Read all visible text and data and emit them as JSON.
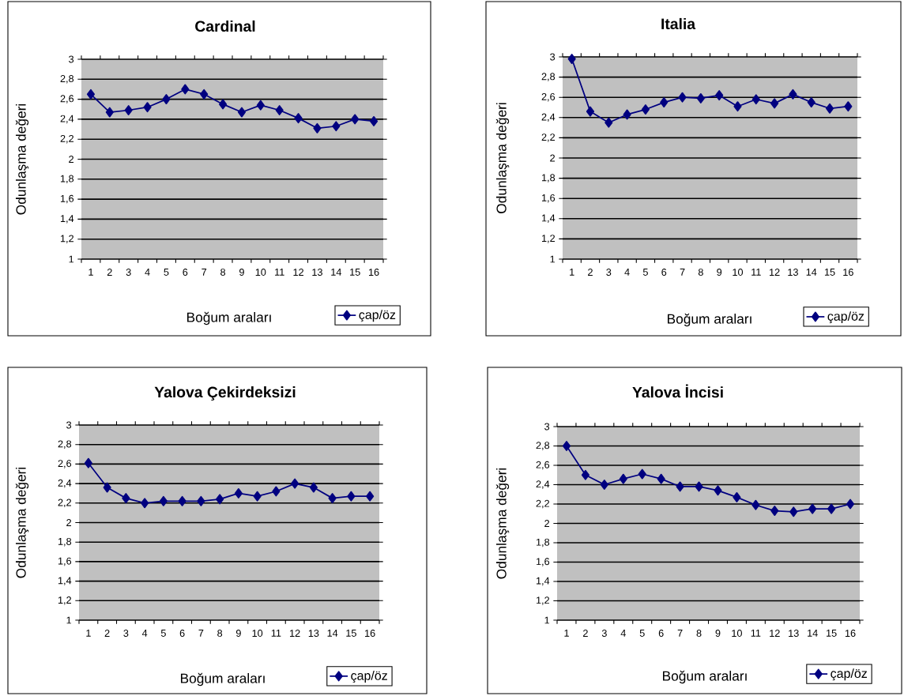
{
  "chart_data": [
    {
      "type": "line",
      "title": "Cardinal",
      "xlabel": "Boğum araları",
      "ylabel": "Odunlaşma değeri",
      "categories": [
        "1",
        "2",
        "3",
        "4",
        "5",
        "6",
        "7",
        "8",
        "9",
        "10",
        "11",
        "12",
        "13",
        "14",
        "15",
        "16"
      ],
      "series": [
        {
          "name": "çap/öz",
          "color": "#000080",
          "values": [
            2.65,
            2.47,
            2.49,
            2.52,
            2.6,
            2.7,
            2.65,
            2.55,
            2.47,
            2.54,
            2.49,
            2.41,
            2.31,
            2.33,
            2.4,
            2.38
          ]
        }
      ],
      "ylim": [
        1,
        3
      ],
      "yticks": [
        1,
        {
          "value": 1.2,
          "label": "1,2"
        },
        {
          "value": 1.4,
          "label": "1,4"
        },
        {
          "value": 1.6,
          "label": "1,6"
        },
        {
          "value": 1.8,
          "label": "1,8"
        },
        2,
        {
          "value": 2.2,
          "label": "2,2"
        },
        {
          "value": 2.4,
          "label": "2,4"
        },
        {
          "value": 2.6,
          "label": "2,6"
        },
        {
          "value": 2.8,
          "label": "2,8"
        },
        3
      ],
      "grid": "y",
      "legend": "bottom right",
      "marker": "diamond",
      "line_style": "solid"
    },
    {
      "type": "line",
      "title": "Italia",
      "xlabel": "Boğum araları",
      "ylabel": "Odunlaşma değeri",
      "categories": [
        "1",
        "2",
        "3",
        "4",
        "5",
        "6",
        "7",
        "8",
        "9",
        "10",
        "11",
        "12",
        "13",
        "14",
        "15",
        "16"
      ],
      "series": [
        {
          "name": "çap/öz",
          "color": "#000080",
          "values": [
            2.98,
            2.46,
            2.35,
            2.43,
            2.48,
            2.55,
            2.6,
            2.59,
            2.62,
            2.51,
            2.58,
            2.54,
            2.63,
            2.55,
            2.49,
            2.51
          ]
        }
      ],
      "ylim": [
        1,
        3
      ],
      "yticks": [
        1,
        {
          "value": 1.2,
          "label": "1,2"
        },
        {
          "value": 1.4,
          "label": "1,4"
        },
        {
          "value": 1.6,
          "label": "1,6"
        },
        {
          "value": 1.8,
          "label": "1,8"
        },
        2,
        {
          "value": 2.2,
          "label": "2,2"
        },
        {
          "value": 2.4,
          "label": "2,4"
        },
        {
          "value": 2.6,
          "label": "2,6"
        },
        {
          "value": 2.8,
          "label": "2,8"
        },
        3
      ],
      "grid": "y",
      "legend": "bottom right",
      "marker": "diamond",
      "line_style": "solid"
    },
    {
      "type": "line",
      "title": "Yalova Çekirdeksizi",
      "xlabel": "Boğum araları",
      "ylabel": "Odunlaşma değeri",
      "categories": [
        "1",
        "2",
        "3",
        "4",
        "5",
        "6",
        "7",
        "8",
        "9",
        "10",
        "11",
        "12",
        "13",
        "14",
        "15",
        "16"
      ],
      "series": [
        {
          "name": "çap/öz",
          "color": "#000080",
          "values": [
            2.61,
            2.36,
            2.25,
            2.2,
            2.22,
            2.22,
            2.22,
            2.24,
            2.3,
            2.27,
            2.32,
            2.4,
            2.36,
            2.25,
            2.27,
            2.27
          ]
        }
      ],
      "ylim": [
        1,
        3
      ],
      "yticks": [
        1,
        {
          "value": 1.2,
          "label": "1,2"
        },
        {
          "value": 1.4,
          "label": "1,4"
        },
        {
          "value": 1.6,
          "label": "1,6"
        },
        {
          "value": 1.8,
          "label": "1,8"
        },
        2,
        {
          "value": 2.2,
          "label": "2,2"
        },
        {
          "value": 2.4,
          "label": "2,4"
        },
        {
          "value": 2.6,
          "label": "2,6"
        },
        {
          "value": 2.8,
          "label": "2,8"
        },
        3
      ],
      "grid": "y",
      "legend": "bottom right",
      "marker": "diamond",
      "line_style": "solid"
    },
    {
      "type": "line",
      "title": "Yalova İncisi",
      "xlabel": "Boğum araları",
      "ylabel": "Odunlaşma değeri",
      "categories": [
        "1",
        "2",
        "3",
        "4",
        "5",
        "6",
        "7",
        "8",
        "9",
        "10",
        "11",
        "12",
        "13",
        "14",
        "15",
        "16"
      ],
      "series": [
        {
          "name": "çap/öz",
          "color": "#000080",
          "values": [
            2.8,
            2.5,
            2.4,
            2.46,
            2.51,
            2.46,
            2.38,
            2.38,
            2.34,
            2.27,
            2.19,
            2.13,
            2.12,
            2.15,
            2.15,
            2.2
          ]
        }
      ],
      "ylim": [
        1,
        3
      ],
      "yticks": [
        1,
        {
          "value": 1.2,
          "label": "1,2"
        },
        {
          "value": 1.4,
          "label": "1,4"
        },
        {
          "value": 1.6,
          "label": "1,6"
        },
        {
          "value": 1.8,
          "label": "1,8"
        },
        2,
        {
          "value": 2.2,
          "label": "2,2"
        },
        {
          "value": 2.4,
          "label": "2,4"
        },
        {
          "value": 2.6,
          "label": "2,6"
        },
        {
          "value": 2.8,
          "label": "2,8"
        },
        3
      ],
      "grid": "y",
      "legend": "bottom right",
      "marker": "diamond",
      "line_style": "solid"
    }
  ]
}
